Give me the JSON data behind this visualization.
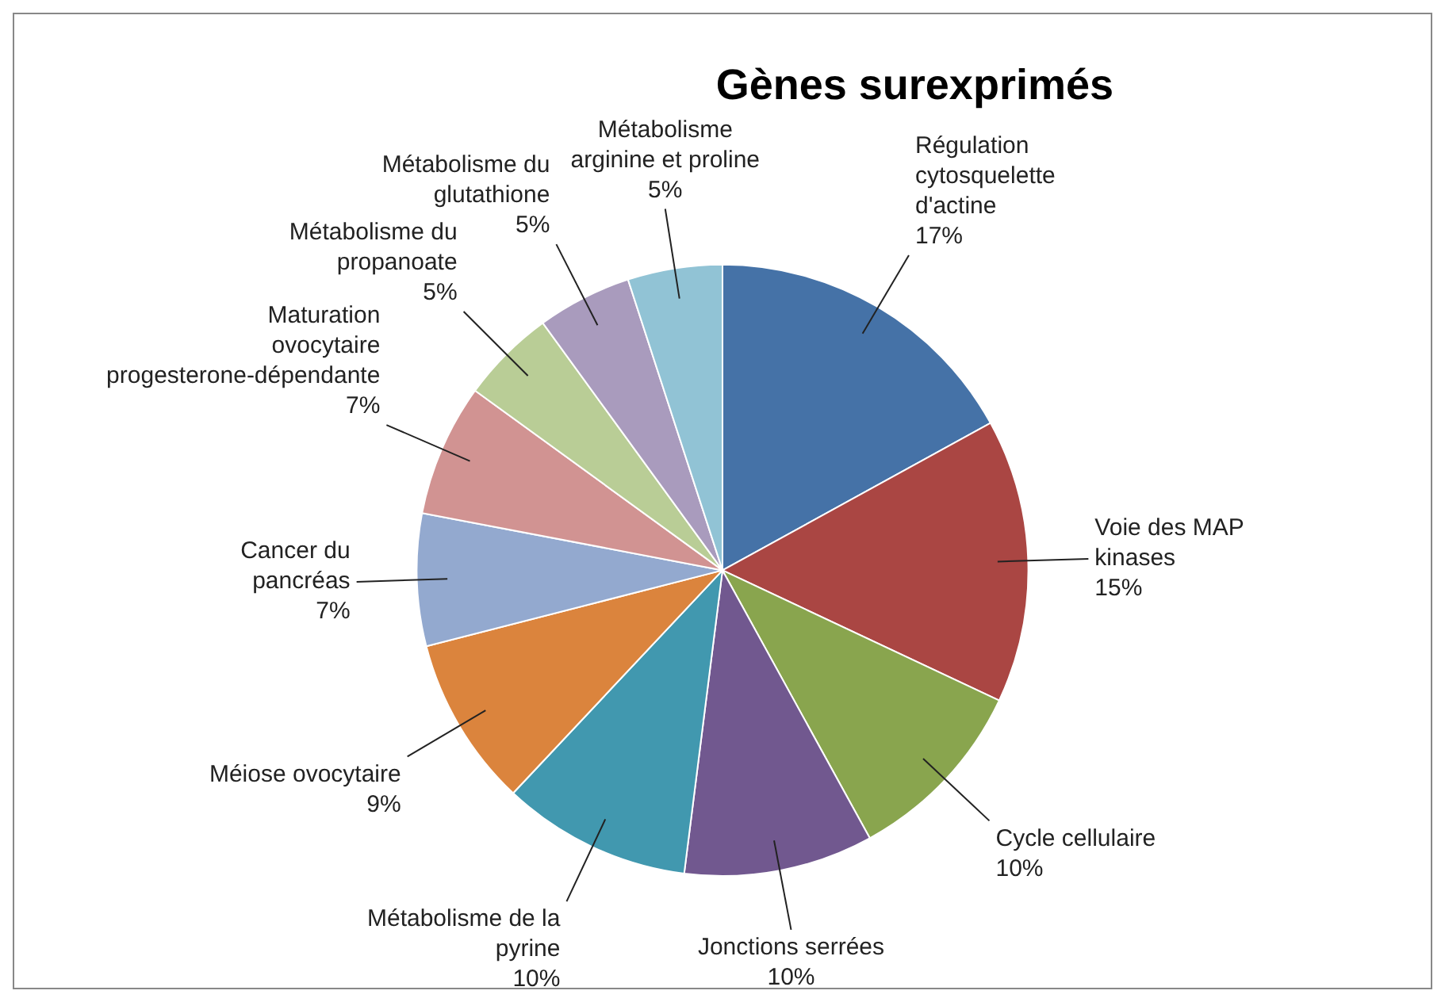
{
  "chart_data": {
    "type": "pie",
    "title": "Gènes surexprimés",
    "categories": [
      "Régulation cytosquelette d'actine",
      "Voie des MAP kinases",
      "Cycle cellulaire",
      "Jonctions serrées",
      "Métabolisme de la pyrine",
      "Méiose ovocytaire",
      "Cancer du pancréas",
      "Maturation ovocytaire progesterone-dépendante",
      "Métabolisme du propanoate",
      "Métabolisme du glutathione",
      "Métabolisme arginine et proline"
    ],
    "values": [
      17,
      15,
      10,
      10,
      10,
      9,
      7,
      7,
      5,
      5,
      5
    ],
    "value_labels": [
      "17%",
      "15%",
      "10%",
      "10%",
      "10%",
      "9%",
      "7%",
      "7%",
      "5%",
      "5%",
      "5%"
    ],
    "colors": [
      "#4572a7",
      "#aa4643",
      "#89a54e",
      "#71588f",
      "#4198af",
      "#db843d",
      "#93a9cf",
      "#d19392",
      "#b9cd96",
      "#a99bbd",
      "#91c3d5"
    ],
    "legend": false
  }
}
